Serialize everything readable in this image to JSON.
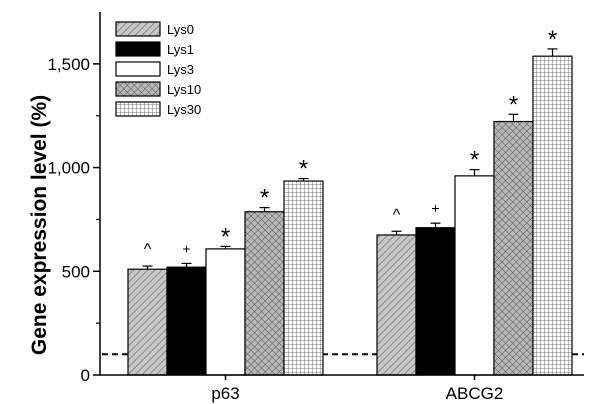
{
  "chart_data": {
    "type": "bar",
    "title": "",
    "xlabel": "",
    "ylabel": "Gene expression level (%)",
    "ylim": [
      0,
      1750
    ],
    "yticks": [
      0,
      500,
      1000,
      1500
    ],
    "ytick_labels": [
      "0",
      "500",
      "1,000",
      "1,500"
    ],
    "categories": [
      "p63",
      "ABCG2"
    ],
    "reference_line": 100,
    "legend_position": "top-left",
    "series": [
      {
        "name": "Lys0",
        "pattern": "diagonal-hatch",
        "values": [
          510,
          675
        ],
        "errors": [
          15,
          18
        ],
        "markers": [
          "^",
          "^"
        ]
      },
      {
        "name": "Lys1",
        "pattern": "solid-black",
        "values": [
          520,
          710
        ],
        "errors": [
          18,
          22
        ],
        "markers": [
          "+",
          "+"
        ]
      },
      {
        "name": "Lys3",
        "pattern": "white",
        "values": [
          608,
          960
        ],
        "errors": [
          12,
          30
        ],
        "markers": [
          "*",
          "*"
        ]
      },
      {
        "name": "Lys10",
        "pattern": "crosshatch",
        "values": [
          787,
          1222
        ],
        "errors": [
          20,
          35
        ],
        "markers": [
          "*",
          "*"
        ]
      },
      {
        "name": "Lys30",
        "pattern": "grid",
        "values": [
          935,
          1537
        ],
        "errors": [
          12,
          35
        ],
        "markers": [
          "*",
          "*"
        ]
      }
    ]
  }
}
